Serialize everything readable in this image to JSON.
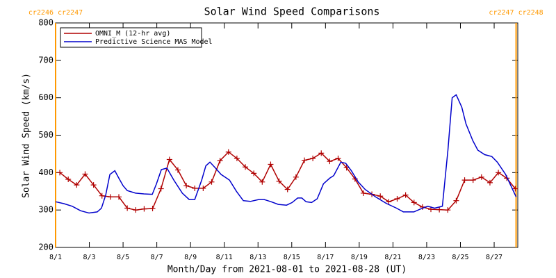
{
  "chart_data": {
    "type": "line",
    "title": "Solar Wind Speed Comparisons",
    "xlabel": "Month/Day from 2021-08-01 to 2021-08-28 (UT)",
    "ylabel": "Solar Wind Speed (km/s)",
    "xlim": [
      0,
      27.4
    ],
    "xticks": [
      {
        "value": 0,
        "label": "8/1"
      },
      {
        "value": 2,
        "label": "8/3"
      },
      {
        "value": 4,
        "label": "8/5"
      },
      {
        "value": 6,
        "label": "8/7"
      },
      {
        "value": 8,
        "label": "8/9"
      },
      {
        "value": 10,
        "label": "8/11"
      },
      {
        "value": 12,
        "label": "8/13"
      },
      {
        "value": 14,
        "label": "8/15"
      },
      {
        "value": 16,
        "label": "8/17"
      },
      {
        "value": 18,
        "label": "8/19"
      },
      {
        "value": 20,
        "label": "8/21"
      },
      {
        "value": 22,
        "label": "8/23"
      },
      {
        "value": 24,
        "label": "8/25"
      },
      {
        "value": 26,
        "label": "8/27"
      }
    ],
    "ylim": [
      200,
      800
    ],
    "yticks": [
      200,
      300,
      400,
      500,
      600,
      700,
      800
    ],
    "legend": "upper left",
    "annotations": [
      {
        "text": "cr2246 cr2247",
        "x": 0,
        "color": "#ff9900"
      },
      {
        "text": "cr2247 cr2248",
        "x": 27.3,
        "color": "#ff9900"
      }
    ],
    "series": [
      {
        "name": "OMNI_M (12-hr avg)",
        "color": "#b00000",
        "marker": "+",
        "x": [
          0.25,
          0.75,
          1.25,
          1.75,
          2.25,
          2.75,
          3.25,
          3.75,
          4.25,
          4.75,
          5.25,
          5.75,
          6.25,
          6.75,
          7.25,
          7.75,
          8.25,
          8.75,
          9.25,
          9.75,
          10.25,
          10.75,
          11.25,
          11.75,
          12.25,
          12.75,
          13.25,
          13.75,
          14.25,
          14.75,
          15.25,
          15.75,
          16.25,
          16.75,
          17.25,
          17.75,
          18.25,
          18.75,
          19.25,
          19.75,
          20.25,
          20.75,
          21.25,
          21.75,
          22.25,
          22.75,
          23.25,
          23.75,
          24.25,
          24.75,
          25.25,
          25.75,
          26.25,
          26.75,
          27.25
        ],
        "values": [
          400,
          382,
          367,
          396,
          367,
          338,
          335,
          335,
          305,
          300,
          303,
          304,
          357,
          435,
          407,
          365,
          358,
          358,
          375,
          432,
          455,
          438,
          415,
          398,
          375,
          422,
          377,
          355,
          388,
          433,
          438,
          452,
          430,
          438,
          413,
          383,
          345,
          342,
          337,
          322,
          330,
          340,
          320,
          308,
          302,
          301,
          300,
          325,
          380,
          380,
          388,
          373,
          400,
          385,
          357
        ]
      },
      {
        "name": "Predictive Science MAS Model",
        "color": "#0000cc",
        "x": [
          0,
          0.49,
          0.99,
          1.48,
          1.98,
          2.47,
          2.72,
          2.97,
          3.22,
          3.51,
          3.75,
          4.0,
          4.25,
          4.74,
          5.24,
          5.73,
          5.98,
          6.27,
          6.6,
          7.01,
          7.51,
          7.92,
          8.25,
          8.66,
          8.91,
          9.15,
          9.48,
          9.81,
          10.31,
          10.72,
          11.13,
          11.55,
          12.04,
          12.37,
          12.78,
          13.2,
          13.69,
          14.02,
          14.35,
          14.6,
          14.85,
          15.18,
          15.51,
          15.88,
          16.25,
          16.49,
          16.91,
          17.2,
          17.53,
          17.94,
          18.35,
          18.97,
          19.59,
          20.21,
          20.62,
          21.24,
          21.65,
          22.06,
          22.47,
          22.93,
          23.26,
          23.51,
          23.75,
          24.08,
          24.33,
          24.74,
          25.03,
          25.44,
          25.86,
          26.19,
          26.68,
          27.3
        ],
        "values": [
          322,
          317,
          310,
          298,
          292,
          295,
          305,
          340,
          395,
          405,
          385,
          365,
          352,
          345,
          343,
          342,
          370,
          408,
          412,
          380,
          345,
          328,
          328,
          380,
          418,
          428,
          412,
          395,
          380,
          350,
          325,
          323,
          328,
          328,
          322,
          315,
          313,
          320,
          332,
          332,
          322,
          320,
          330,
          370,
          385,
          392,
          428,
          425,
          405,
          375,
          355,
          335,
          318,
          305,
          295,
          295,
          303,
          310,
          305,
          310,
          460,
          600,
          608,
          575,
          530,
          485,
          460,
          448,
          443,
          428,
          395,
          335
        ]
      }
    ]
  }
}
